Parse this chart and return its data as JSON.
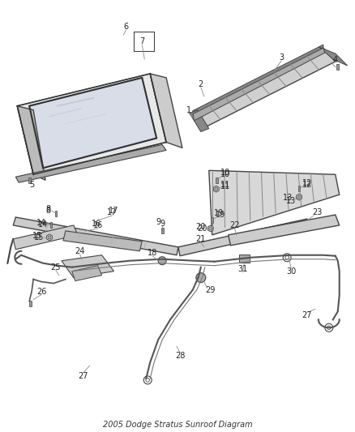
{
  "title": "2005 Dodge Stratus Sunroof Diagram",
  "bg_color": "#ffffff",
  "lc": "#444444",
  "fig_width": 4.38,
  "fig_height": 5.33,
  "dpi": 100
}
